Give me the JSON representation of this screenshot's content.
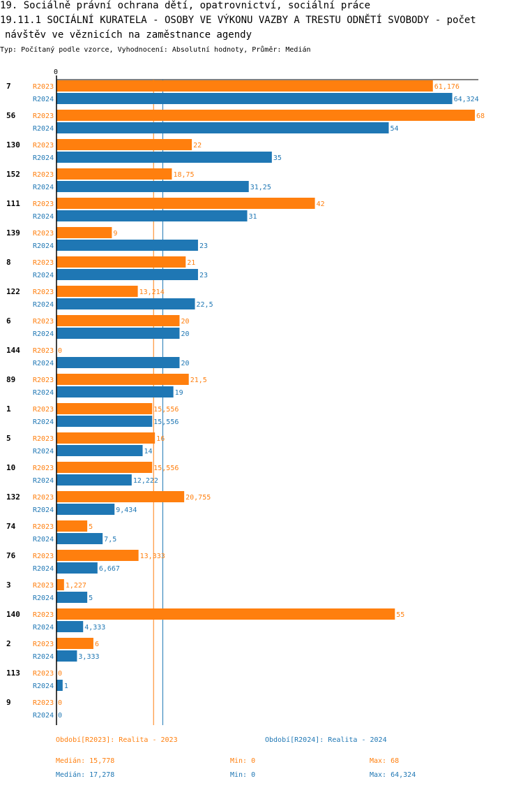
{
  "header": {
    "line1": "19. Sociálně právní ochrana dětí, opatrovnictví, sociální práce",
    "line2": "19.11.1 SOCIÁLNÍ KURATELA - OSOBY VE VÝKONU VAZBY A TRESTU ODNĚTÍ SVOBODY - počet",
    "line3": "návštěv ve věznicích na zaměstnance agendy",
    "subtitle": "Typ: Počítaný podle vzorce, Vyhodnocení: Absolutní hodnoty, Průměr: Medián"
  },
  "colors": {
    "r2023": "#ff7f0e",
    "r2024": "#1f77b4"
  },
  "chart_data": {
    "type": "bar",
    "orientation": "horizontal",
    "title": "19.11.1 SOCIÁLNÍ KURATELA - OSOBY VE VÝKONU VAZBY A TRESTU ODNĚTÍ SVOBODY - počet návštěv ve věznicích na zaměstnance agendy",
    "axis_zero_label": "0",
    "xlim": [
      0,
      68
    ],
    "categories": [
      "7",
      "56",
      "130",
      "152",
      "111",
      "139",
      "8",
      "122",
      "6",
      "144",
      "89",
      "1",
      "5",
      "10",
      "132",
      "74",
      "76",
      "3",
      "140",
      "2",
      "113",
      "9"
    ],
    "series": [
      {
        "name": "R2023",
        "values": [
          61.176,
          68,
          22,
          18.75,
          42,
          9,
          21,
          13.214,
          20,
          0,
          21.5,
          15.556,
          16,
          15.556,
          20.755,
          5,
          13.333,
          1.227,
          55,
          6,
          0,
          0
        ],
        "labels": [
          "61,176",
          "68",
          "22",
          "18,75",
          "42",
          "9",
          "21",
          "13,214",
          "20",
          "0",
          "21,5",
          "15,556",
          "16",
          "15,556",
          "20,755",
          "5",
          "13,333",
          "1,227",
          "55",
          "6",
          "0",
          "0"
        ]
      },
      {
        "name": "R2024",
        "values": [
          64.324,
          54,
          35,
          31.25,
          31,
          23,
          23,
          22.5,
          20,
          20,
          19,
          15.556,
          14,
          12.222,
          9.434,
          7.5,
          6.667,
          5,
          4.333,
          3.333,
          1,
          0
        ],
        "labels": [
          "64,324",
          "54",
          "35",
          "31,25",
          "31",
          "23",
          "23",
          "22,5",
          "20",
          "20",
          "19",
          "15,556",
          "14",
          "12,222",
          "9,434",
          "7,5",
          "6,667",
          "5",
          "4,333",
          "3,333",
          "1",
          "0"
        ]
      }
    ],
    "median_lines": [
      15.778,
      17.278
    ]
  },
  "legend": {
    "r2023": "Období[R2023]: Realita - 2023",
    "r2024": "Období[R2024]: Realita - 2024"
  },
  "stats": {
    "r2023": {
      "median": "Medián: 15,778",
      "min": "Min: 0",
      "max": "Max: 68"
    },
    "r2024": {
      "median": "Medián: 17,278",
      "min": "Min: 0",
      "max": "Max: 64,324"
    }
  }
}
